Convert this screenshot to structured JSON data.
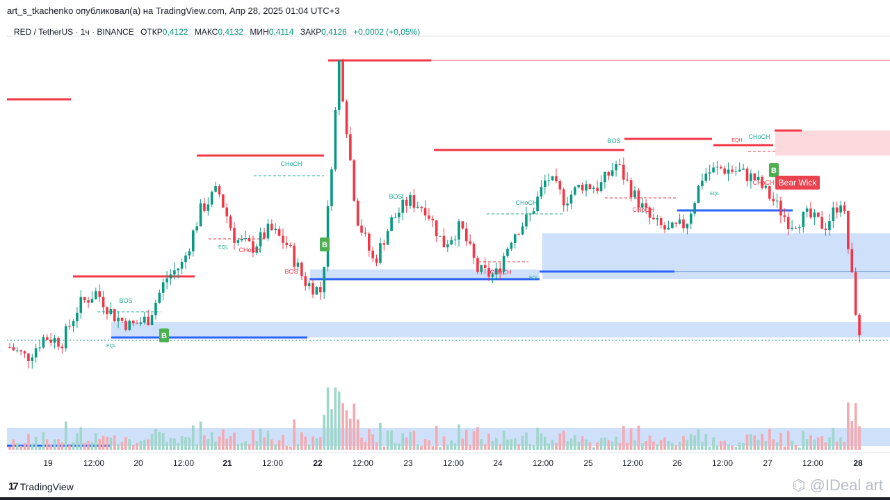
{
  "header": {
    "publisher_line": "art_s_tkachenko опубликовал(а) на TradingView.com, Апр 28, 2025 01:04 UTC+3"
  },
  "legend": {
    "symbol": "RED / TetherUS · 1ч · BINANCE",
    "open_label": "ОТКР",
    "open": "0,4122",
    "high_label": "МАКС",
    "high": "0,4132",
    "low_label": "МИН",
    "low": "0,4114",
    "close_label": "ЗАКР",
    "close": "0,4126",
    "change": "+0,0002 (+0,05%)"
  },
  "footer": {
    "logo_text": "TradingView",
    "logo_mark": "17",
    "watermark": "⌬ @IDeal art"
  },
  "colors": {
    "up": "#089981",
    "down": "#f23645",
    "support": "#2962ff",
    "resistance": "#f23645",
    "demand_zone": "#cfe0fb",
    "supply_zone": "#fbd9dc",
    "teal_label": "#22ab94",
    "green_badge": "#4caf50"
  },
  "chart_data": {
    "type": "candlestick",
    "symbol": "RED / TetherUS",
    "interval": "1h",
    "exchange": "BINANCE",
    "x_ticks": [
      "19",
      "12:00",
      "20",
      "12:00",
      "21",
      "12:00",
      "22",
      "12:00",
      "23",
      "12:00",
      "24",
      "12:00",
      "25",
      "12:00",
      "26",
      "12:00",
      "27",
      "12:00",
      "28"
    ],
    "price_path": [
      0.41,
      0.406,
      0.414,
      0.412,
      0.426,
      0.431,
      0.422,
      0.418,
      0.421,
      0.436,
      0.442,
      0.462,
      0.47,
      0.451,
      0.448,
      0.455,
      0.449,
      0.435,
      0.431,
      0.519,
      0.46,
      0.442,
      0.458,
      0.466,
      0.463,
      0.449,
      0.456,
      0.439,
      0.437,
      0.453,
      0.46,
      0.475,
      0.466,
      0.472,
      0.471,
      0.48,
      0.468,
      0.458,
      0.454,
      0.457,
      0.476,
      0.478,
      0.477,
      0.474,
      0.466,
      0.457,
      0.46,
      0.456,
      0.467,
      0.4126
    ],
    "annotations": {
      "structure_labels": [
        {
          "text": "BOS",
          "kind": "bullish"
        },
        {
          "text": "EQL",
          "kind": "bullish"
        },
        {
          "text": "CHoCH",
          "kind": "bullish"
        },
        {
          "text": "EQL",
          "kind": "bullish"
        },
        {
          "text": "CHoCH",
          "kind": "bearish"
        },
        {
          "text": "BOS",
          "kind": "bearish"
        },
        {
          "text": "BOS",
          "kind": "bullish"
        },
        {
          "text": "CHoCH",
          "kind": "bullish"
        },
        {
          "text": "CHoCH",
          "kind": "bearish"
        },
        {
          "text": "EQL",
          "kind": "bullish"
        },
        {
          "text": "BOS",
          "kind": "bullish"
        },
        {
          "text": "CHoCH",
          "kind": "bearish"
        },
        {
          "text": "EQH",
          "kind": "bearish"
        },
        {
          "text": "CHoCH",
          "kind": "bullish"
        },
        {
          "text": "CHoCH",
          "kind": "bearish"
        },
        {
          "text": "EQL",
          "kind": "bullish"
        }
      ],
      "badges": [
        "B",
        "B",
        "B"
      ],
      "callout": "Bear Wick"
    }
  }
}
